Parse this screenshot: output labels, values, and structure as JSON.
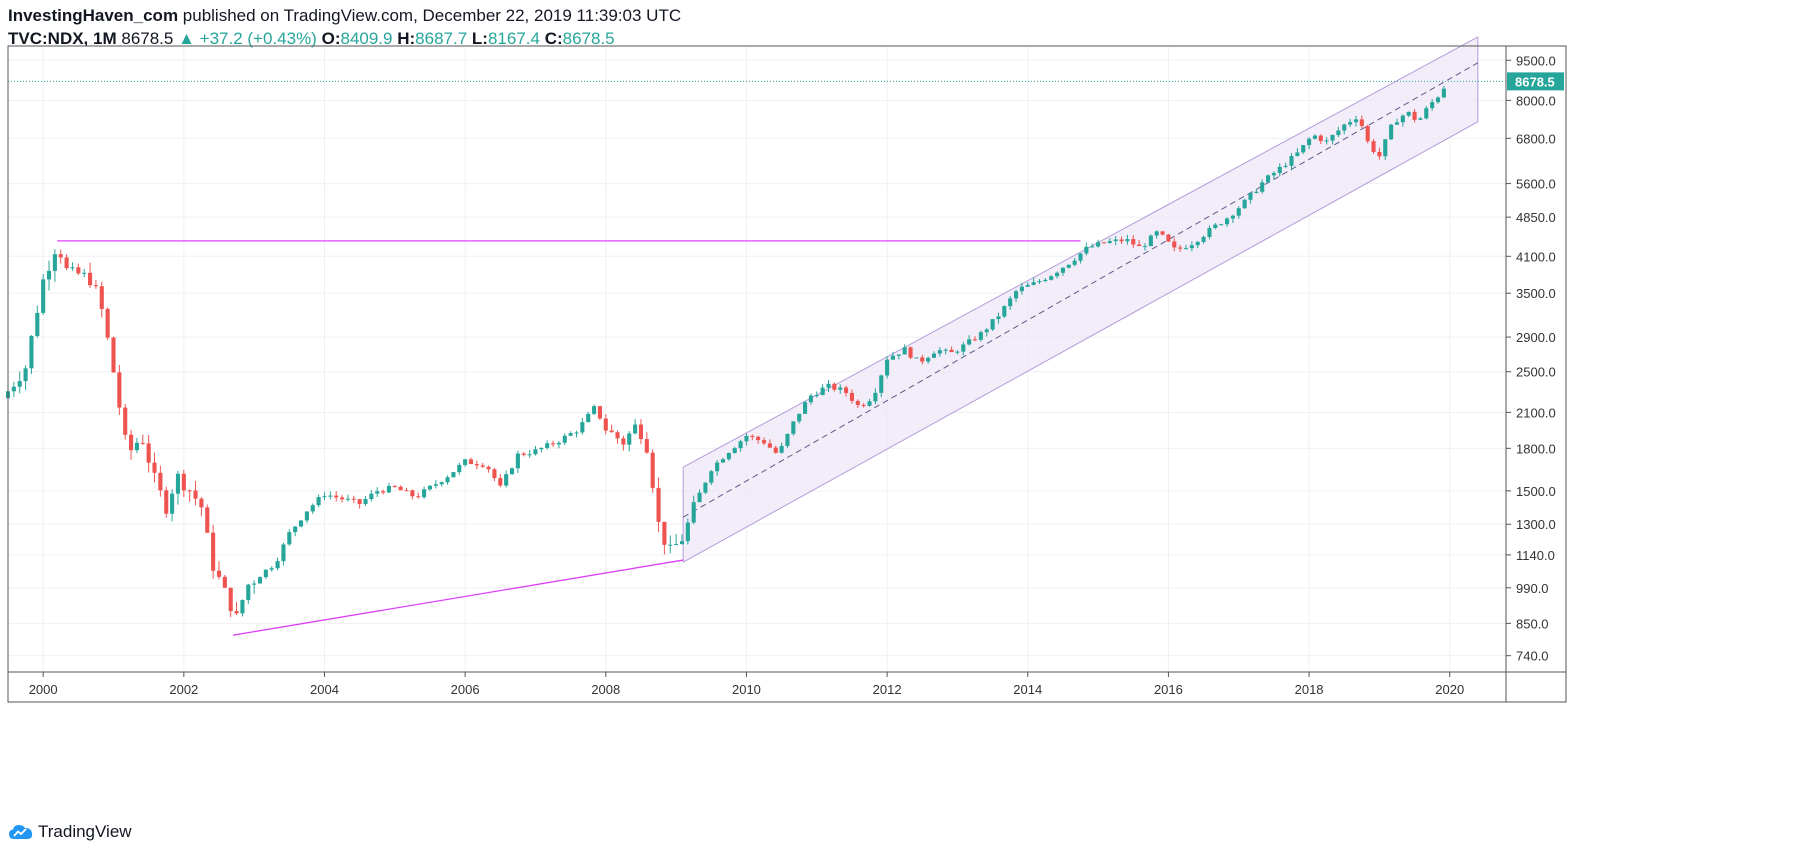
{
  "header": {
    "author": "InvestingHaven_com",
    "published": " published on TradingView.com, December 22, 2019 11:39:03 UTC",
    "symbol": "TVC:NDX, 1M",
    "last": "8678.5",
    "change": "+37.2 (+0.43%)",
    "o_label": "O:",
    "o": "8409.9",
    "h_label": "H:",
    "h": "8687.7",
    "l_label": "L:",
    "l": "8167.4",
    "c_label": "C:",
    "c": "8678.5"
  },
  "footer": {
    "brand": "TradingView"
  },
  "colors": {
    "up": "#26a69a",
    "down": "#ef5350",
    "trendline": "#e040fb",
    "channel_fill": "#ede7f6",
    "channel_line": "#b39ddb",
    "last_price": "#26a69a"
  },
  "chart_data": {
    "type": "candlestick",
    "scale": "log",
    "ylim": [
      690,
      10100
    ],
    "xlim": [
      1999.5,
      2020.8
    ],
    "y_ticks": [
      "740.0",
      "850.0",
      "990.0",
      "1140.0",
      "1300.0",
      "1500.0",
      "1800.0",
      "2100.0",
      "2500.0",
      "2900.0",
      "3500.0",
      "4100.0",
      "4850.0",
      "5600.0",
      "6800.0",
      "8000.0",
      "9500.0"
    ],
    "x_ticks": [
      "2000",
      "2002",
      "2004",
      "2006",
      "2008",
      "2010",
      "2012",
      "2014",
      "2016",
      "2018",
      "2020"
    ],
    "last_price_label": "8678.5",
    "last_price": 8678.5,
    "close_path": [
      [
        1999.5,
        2300
      ],
      [
        1999.75,
        2550
      ],
      [
        2000.0,
        3700
      ],
      [
        2000.2,
        4350
      ],
      [
        2000.35,
        3800
      ],
      [
        2000.5,
        3800
      ],
      [
        2000.7,
        3700
      ],
      [
        2000.85,
        3200
      ],
      [
        2001.0,
        2500
      ],
      [
        2001.2,
        1750
      ],
      [
        2001.4,
        1900
      ],
      [
        2001.6,
        1550
      ],
      [
        2001.75,
        1400
      ],
      [
        2001.9,
        1600
      ],
      [
        2002.1,
        1500
      ],
      [
        2002.25,
        1400
      ],
      [
        2002.4,
        1100
      ],
      [
        2002.6,
        960
      ],
      [
        2002.75,
        870
      ],
      [
        2002.9,
        1000
      ],
      [
        2003.1,
        1050
      ],
      [
        2003.3,
        1100
      ],
      [
        2003.5,
        1250
      ],
      [
        2003.75,
        1380
      ],
      [
        2004.0,
        1480
      ],
      [
        2004.25,
        1450
      ],
      [
        2004.5,
        1420
      ],
      [
        2004.75,
        1500
      ],
      [
        2005.0,
        1520
      ],
      [
        2005.3,
        1460
      ],
      [
        2005.5,
        1520
      ],
      [
        2005.75,
        1600
      ],
      [
        2006.0,
        1700
      ],
      [
        2006.3,
        1680
      ],
      [
        2006.5,
        1520
      ],
      [
        2006.75,
        1750
      ],
      [
        2007.0,
        1780
      ],
      [
        2007.3,
        1850
      ],
      [
        2007.6,
        1950
      ],
      [
        2007.85,
        2150
      ],
      [
        2008.0,
        1950
      ],
      [
        2008.25,
        1850
      ],
      [
        2008.45,
        2000
      ],
      [
        2008.6,
        1800
      ],
      [
        2008.75,
        1300
      ],
      [
        2008.9,
        1150
      ],
      [
        2009.1,
        1230
      ],
      [
        2009.3,
        1450
      ],
      [
        2009.5,
        1650
      ],
      [
        2009.75,
        1780
      ],
      [
        2010.0,
        1900
      ],
      [
        2010.25,
        1850
      ],
      [
        2010.45,
        1750
      ],
      [
        2010.7,
        2050
      ],
      [
        2010.9,
        2250
      ],
      [
        2011.15,
        2350
      ],
      [
        2011.4,
        2300
      ],
      [
        2011.6,
        2150
      ],
      [
        2011.8,
        2250
      ],
      [
        2012.0,
        2650
      ],
      [
        2012.25,
        2750
      ],
      [
        2012.45,
        2600
      ],
      [
        2012.7,
        2750
      ],
      [
        2012.9,
        2700
      ],
      [
        2013.1,
        2800
      ],
      [
        2013.35,
        2950
      ],
      [
        2013.6,
        3200
      ],
      [
        2013.85,
        3550
      ],
      [
        2014.1,
        3650
      ],
      [
        2014.35,
        3800
      ],
      [
        2014.6,
        4000
      ],
      [
        2014.85,
        4250
      ],
      [
        2015.1,
        4350
      ],
      [
        2015.4,
        4400
      ],
      [
        2015.6,
        4250
      ],
      [
        2015.85,
        4550
      ],
      [
        2016.1,
        4200
      ],
      [
        2016.35,
        4350
      ],
      [
        2016.6,
        4600
      ],
      [
        2016.85,
        4850
      ],
      [
        2017.1,
        5200
      ],
      [
        2017.35,
        5650
      ],
      [
        2017.6,
        6000
      ],
      [
        2017.85,
        6400
      ],
      [
        2018.05,
        6900
      ],
      [
        2018.25,
        6700
      ],
      [
        2018.5,
        7200
      ],
      [
        2018.7,
        7500
      ],
      [
        2018.85,
        6600
      ],
      [
        2019.0,
        6300
      ],
      [
        2019.2,
        7300
      ],
      [
        2019.4,
        7600
      ],
      [
        2019.55,
        7300
      ],
      [
        2019.7,
        7800
      ],
      [
        2019.85,
        8200
      ],
      [
        2019.97,
        8678.5
      ]
    ],
    "lines": {
      "horizontal_resistance": {
        "from": [
          2000.2,
          4380
        ],
        "to": [
          2014.75,
          4380
        ]
      },
      "support": {
        "from": [
          2002.7,
          808
        ],
        "to": [
          2009.1,
          1115
        ]
      },
      "channel": {
        "start": 2009.1,
        "end": 2020.4,
        "upper": [
          1660,
          10500
        ],
        "mid": [
          1340,
          9400
        ],
        "lower": [
          1105,
          7300
        ]
      }
    }
  }
}
